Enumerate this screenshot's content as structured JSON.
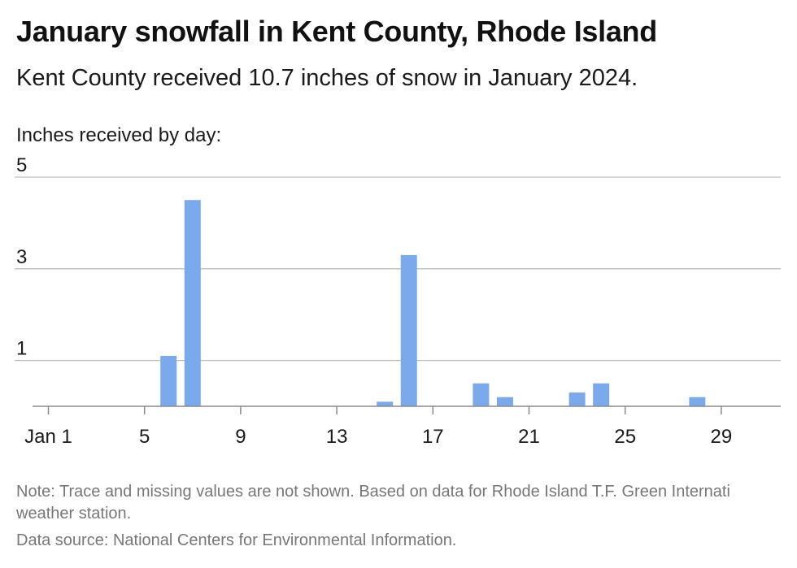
{
  "title": "January snowfall in Kent County, Rhode Island",
  "subtitle": "Kent County received 10.7 inches of snow in January 2024.",
  "ylabel": "Inches received by day:",
  "note": "Note: Trace and missing values are not shown. Based on data for Rhode Island T.F. Green Internati weather station.",
  "source": "Data source: National Centers for Environmental Information.",
  "colors": {
    "bar": "#7aaaeb",
    "grid": "#bdbdbd",
    "axis": "#8a8a8a"
  },
  "chart_data": {
    "type": "bar",
    "title": "January snowfall in Kent County, Rhode Island",
    "ylabel": "Inches received by day:",
    "xlabel": "",
    "ylim": [
      0,
      5
    ],
    "yticks": [
      1,
      3,
      5
    ],
    "xticks": [
      {
        "day": 1,
        "label": "Jan 1"
      },
      {
        "day": 5,
        "label": "5"
      },
      {
        "day": 9,
        "label": "9"
      },
      {
        "day": 13,
        "label": "13"
      },
      {
        "day": 17,
        "label": "17"
      },
      {
        "day": 21,
        "label": "21"
      },
      {
        "day": 25,
        "label": "25"
      },
      {
        "day": 29,
        "label": "29"
      }
    ],
    "days": [
      1,
      2,
      3,
      4,
      5,
      6,
      7,
      8,
      9,
      10,
      11,
      12,
      13,
      14,
      15,
      16,
      17,
      18,
      19,
      20,
      21,
      22,
      23,
      24,
      25,
      26,
      27,
      28,
      29,
      30,
      31
    ],
    "values": [
      0,
      0,
      0,
      0,
      0,
      1.1,
      4.5,
      0,
      0,
      0,
      0,
      0,
      0,
      0,
      0.1,
      3.3,
      0,
      0,
      0.5,
      0.2,
      0,
      0,
      0.3,
      0.5,
      0,
      0,
      0,
      0.2,
      0,
      0,
      0
    ]
  }
}
